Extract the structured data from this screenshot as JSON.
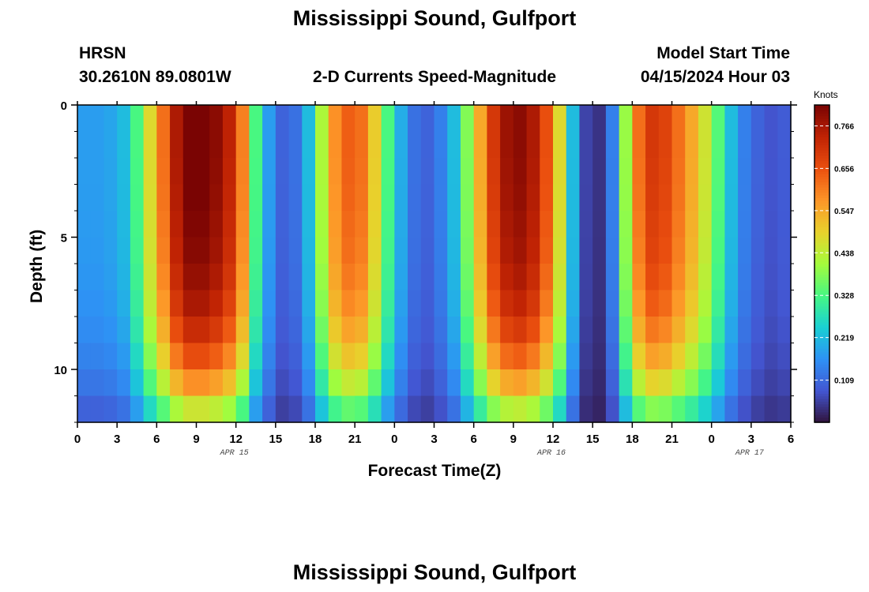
{
  "titles": {
    "top": "Mississippi Sound, Gulfport",
    "bottom": "Mississippi Sound, Gulfport"
  },
  "header": {
    "station": "HRSN",
    "coords": "30.2610N  89.0801W",
    "product": "2-D Currents Speed-Magnitude",
    "model_label": "Model Start Time",
    "model_time": "04/15/2024 Hour 03"
  },
  "chart_data": {
    "type": "heatmap",
    "title": "2-D Currents Speed-Magnitude",
    "xlabel": "Forecast Time(Z)",
    "ylabel": "Depth (ft)",
    "x_range_hours": [
      0,
      54
    ],
    "x_tick_hours": [
      0,
      3,
      6,
      9,
      12,
      15,
      18,
      21,
      24,
      27,
      30,
      33,
      36,
      39,
      42,
      45,
      48,
      51,
      54
    ],
    "x_tick_labels": [
      "0",
      "3",
      "6",
      "9",
      "12",
      "15",
      "18",
      "21",
      "0",
      "3",
      "6",
      "9",
      "12",
      "15",
      "18",
      "21",
      "0",
      "3",
      "6"
    ],
    "date_labels": [
      {
        "text": "APR 15",
        "hour": 12
      },
      {
        "text": "APR 16",
        "hour": 36
      },
      {
        "text": "APR 17",
        "hour": 51
      }
    ],
    "y_range_ft": [
      0,
      12
    ],
    "y_tick_values": [
      0,
      5,
      10
    ],
    "y_tick_labels": [
      "0",
      "5",
      "10"
    ],
    "depth_layers_ft": [
      0.5,
      1.5,
      2.5,
      3.5,
      4.5,
      5.5,
      6.5,
      7.5,
      8.5,
      9.5,
      10.5,
      11.5
    ],
    "time_step_hours": 1,
    "surface_speed_by_hour": [
      0.18,
      0.18,
      0.19,
      0.22,
      0.33,
      0.48,
      0.62,
      0.76,
      0.83,
      0.83,
      0.8,
      0.74,
      0.6,
      0.33,
      0.18,
      0.1,
      0.12,
      0.22,
      0.42,
      0.58,
      0.64,
      0.62,
      0.5,
      0.33,
      0.2,
      0.12,
      0.1,
      0.14,
      0.22,
      0.38,
      0.55,
      0.7,
      0.78,
      0.8,
      0.76,
      0.66,
      0.48,
      0.22,
      0.06,
      0.04,
      0.14,
      0.4,
      0.62,
      0.7,
      0.68,
      0.62,
      0.55,
      0.46,
      0.34,
      0.22,
      0.14,
      0.1,
      0.08,
      0.09
    ],
    "depth_profile": [
      1.0,
      1.0,
      0.995,
      0.99,
      0.98,
      0.97,
      0.95,
      0.92,
      0.87,
      0.8,
      0.7,
      0.55
    ],
    "colorbar": {
      "unit": "Knots",
      "min": 0.0,
      "max": 0.82,
      "ticks": [
        0.109,
        0.219,
        0.328,
        0.438,
        0.547,
        0.656,
        0.766
      ],
      "tick_labels": [
        "0.109",
        "0.219",
        "0.328",
        "0.438",
        "0.547",
        "0.656",
        "0.766"
      ],
      "colormap": "turbo"
    }
  }
}
